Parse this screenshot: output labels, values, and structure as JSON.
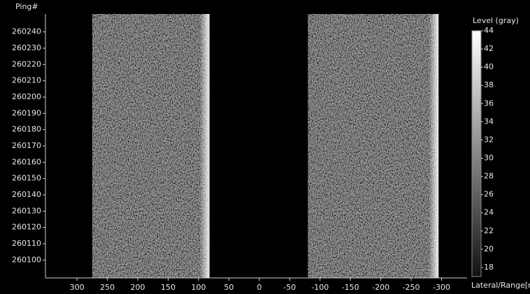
{
  "chart_data": {
    "type": "waterfall",
    "y_label": "Ping#",
    "x_label": "Lateral/Range[m]",
    "colorbar_label": "Level (gray)",
    "xlim": [
      352,
      -342
    ],
    "xticks": [
      300,
      250,
      200,
      150,
      100,
      50,
      0,
      -50,
      -100,
      -150,
      -200,
      -250,
      -300
    ],
    "ylim": [
      260089,
      260251
    ],
    "yticks": [
      260100,
      260110,
      260120,
      260130,
      260140,
      260150,
      260160,
      260170,
      260180,
      260190,
      260200,
      260210,
      260220,
      260230,
      260240
    ],
    "swaths": [
      {
        "from": 275,
        "to": 82
      },
      {
        "from": -80,
        "to": -295
      }
    ],
    "clim": [
      17,
      44
    ],
    "cticks": [
      18,
      20,
      22,
      24,
      26,
      28,
      30,
      32,
      34,
      36,
      38,
      40,
      42,
      44
    ]
  }
}
